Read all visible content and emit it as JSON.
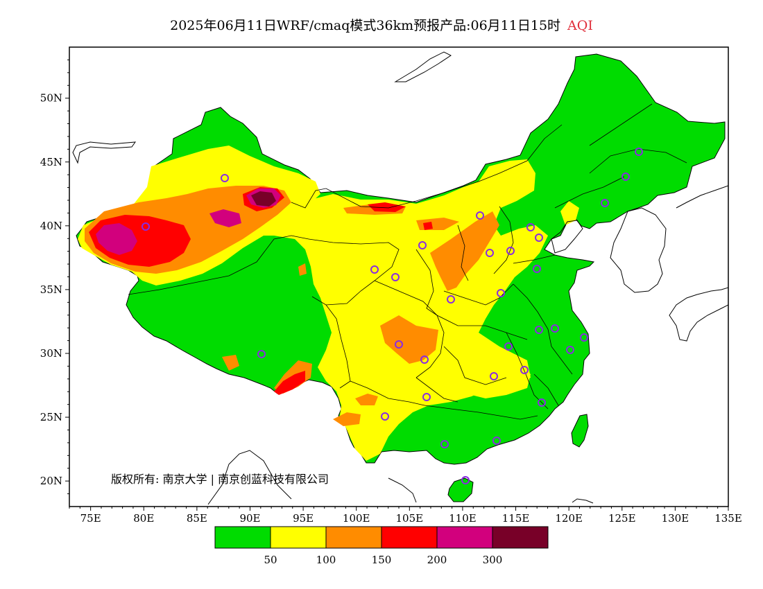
{
  "title": {
    "text": "2025年06月11日WRF/cmaq模式36km预报产品:06月11日15时",
    "variable": "AQI"
  },
  "map": {
    "lon_range": [
      73,
      135
    ],
    "lat_range": [
      18,
      54
    ],
    "x_ticks": [
      "75E",
      "80E",
      "85E",
      "90E",
      "95E",
      "100E",
      "105E",
      "110E",
      "115E",
      "120E",
      "125E",
      "130E",
      "135E"
    ],
    "y_ticks": [
      "20N",
      "25N",
      "30N",
      "35N",
      "40N",
      "45N",
      "50N"
    ],
    "copyright": "版权所有: 南京大学 | 南京创蓝科技有限公司",
    "station_color": "#8a2be2"
  },
  "legend": {
    "labels": [
      "50",
      "100",
      "150",
      "200",
      "300"
    ],
    "colors": [
      "#00dc00",
      "#ffff00",
      "#ff8c00",
      "#ff0000",
      "#d2007d",
      "#780028"
    ]
  }
}
